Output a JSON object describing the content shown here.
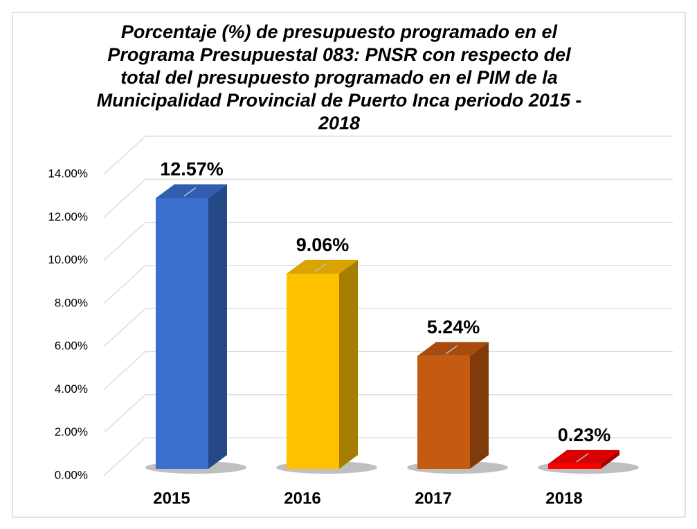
{
  "chart_data": {
    "type": "bar",
    "title": "Porcentaje (%) de presupuesto programado en el Programa Presupuestal 083: PNSR con respecto del total del presupuesto programado en el PIM de la Municipalidad Provincial de Puerto Inca periodo 2015 - 2018",
    "categories": [
      "2015",
      "2016",
      "2017",
      "2018"
    ],
    "values": [
      12.57,
      9.06,
      5.24,
      0.23
    ],
    "value_labels": [
      "12.57%",
      "9.06%",
      "5.24%",
      "0.23%"
    ],
    "colors": [
      "#3a6fce",
      "#ffc000",
      "#c55a11",
      "#ff0000"
    ],
    "ylim": [
      0,
      14
    ],
    "yticks": [
      {
        "value": 0,
        "label": "0.00%"
      },
      {
        "value": 2,
        "label": "2.00%"
      },
      {
        "value": 4,
        "label": "4.00%"
      },
      {
        "value": 6,
        "label": "6.00%"
      },
      {
        "value": 8,
        "label": "8.00%"
      },
      {
        "value": 10,
        "label": "10.00%"
      },
      {
        "value": 12,
        "label": "12.00%"
      },
      {
        "value": 14,
        "label": "14.00%"
      }
    ],
    "grid": true
  }
}
